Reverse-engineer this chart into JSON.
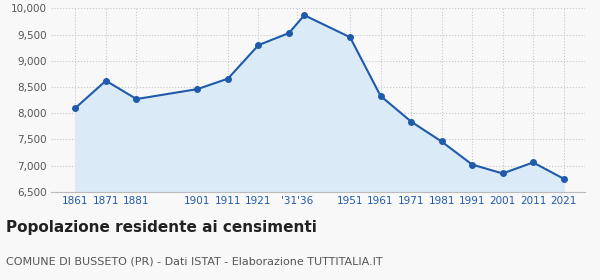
{
  "years": [
    1861,
    1871,
    1881,
    1901,
    1911,
    1921,
    1931,
    1936,
    1951,
    1961,
    1971,
    1981,
    1991,
    2001,
    2011,
    2021
  ],
  "population": [
    8100,
    8620,
    8270,
    8460,
    8660,
    9300,
    9530,
    9870,
    9450,
    8330,
    7840,
    7460,
    7020,
    6850,
    7060,
    6750
  ],
  "tick_labels": [
    "1861",
    "1871",
    "1881",
    "1901",
    "1911",
    "1921",
    "'31'36",
    "1951",
    "1961",
    "1971",
    "1981",
    "1991",
    "2001",
    "2011",
    "2021"
  ],
  "tick_positions": [
    1861,
    1871,
    1881,
    1901,
    1911,
    1921,
    1933.5,
    1951,
    1961,
    1971,
    1981,
    1991,
    2001,
    2011,
    2021
  ],
  "line_color": "#1f5baa",
  "fill_color": "#daeaf7",
  "marker": "o",
  "marker_size": 4,
  "ylim": [
    6500,
    10000
  ],
  "yticks": [
    6500,
    7000,
    7500,
    8000,
    8500,
    9000,
    9500,
    10000
  ],
  "xlim_min": 1853,
  "xlim_max": 2028,
  "title": "Popolazione residente ai censimenti",
  "subtitle": "COMUNE DI BUSSETO (PR) - Dati ISTAT - Elaborazione TUTTITALIA.IT",
  "title_fontsize": 11,
  "subtitle_fontsize": 8,
  "background_color": "#f8f8f8",
  "grid_color": "#c8c8c8",
  "xtick_color": "#1f5baa",
  "ytick_color": "#555555"
}
